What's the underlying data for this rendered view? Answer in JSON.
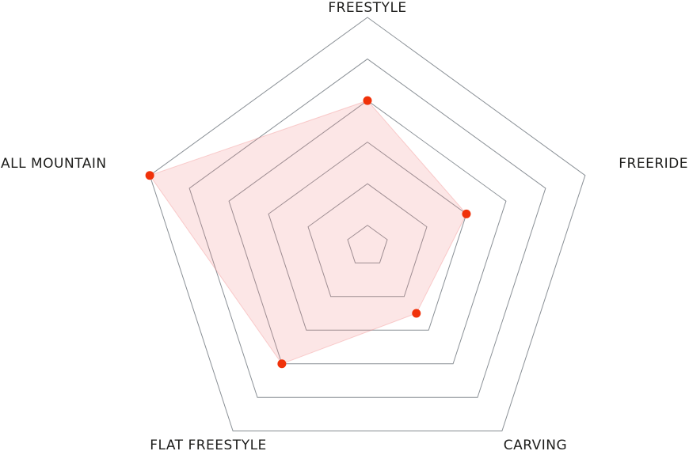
{
  "chart_data": {
    "type": "radar",
    "axes": [
      "FREESTYLE",
      "FREERIDE",
      "CARVING",
      "FLAT FREESTYLE",
      "ALL MOUNTAIN"
    ],
    "values": [
      4,
      3,
      2.5,
      4,
      6
    ],
    "rlim": [
      0.5,
      6
    ],
    "grid_levels": [
      1,
      2,
      3,
      4,
      5,
      6
    ],
    "grid": true,
    "colors": {
      "grid": "#8a9096",
      "fill": "#f08080",
      "point": "#f0320a",
      "label": "#1d1d1b"
    }
  }
}
